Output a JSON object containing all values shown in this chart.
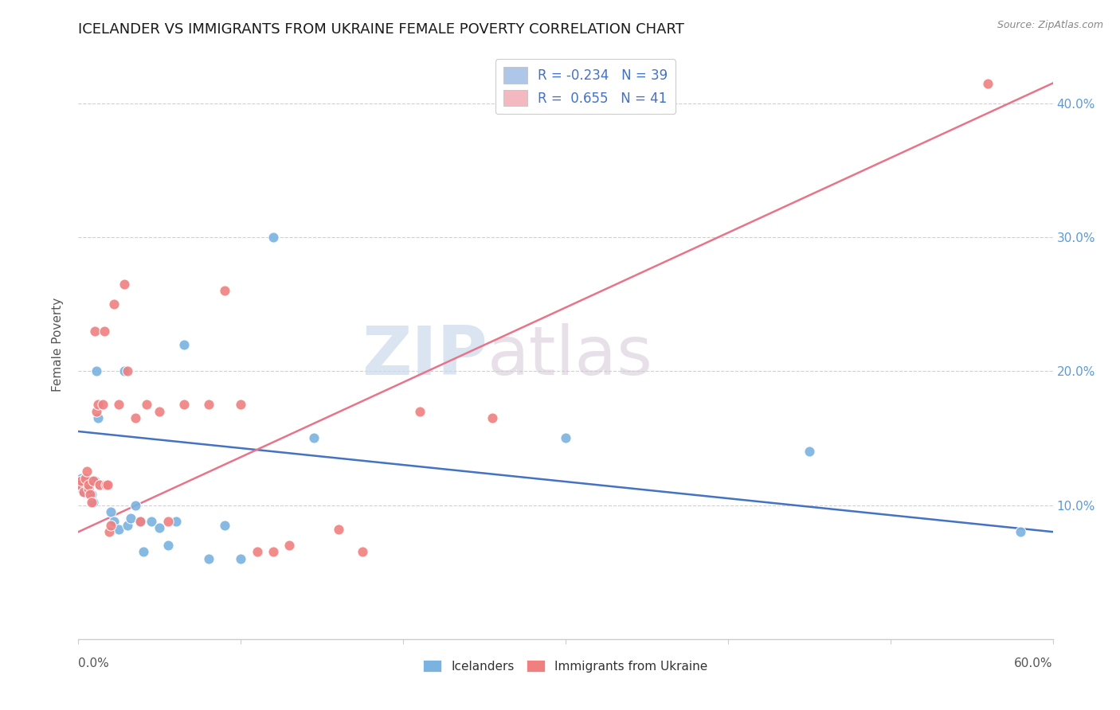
{
  "title": "ICELANDER VS IMMIGRANTS FROM UKRAINE FEMALE POVERTY CORRELATION CHART",
  "source": "Source: ZipAtlas.com",
  "ylabel": "Female Poverty",
  "ytick_labels": [
    "10.0%",
    "20.0%",
    "30.0%",
    "40.0%"
  ],
  "ytick_values": [
    0.1,
    0.2,
    0.3,
    0.4
  ],
  "xlim": [
    0.0,
    0.6
  ],
  "ylim": [
    0.0,
    0.44
  ],
  "legend_entries": [
    {
      "label": "R = -0.234   N = 39",
      "color": "#aec6e8"
    },
    {
      "label": "R =  0.655   N = 41",
      "color": "#f4b8c1"
    }
  ],
  "icelanders_color": "#7ab3e0",
  "ukraine_color": "#f08080",
  "blue_line_color": "#4472c4",
  "pink_line_color": "#e8748a",
  "icelanders_x": [
    0.001,
    0.002,
    0.002,
    0.003,
    0.004,
    0.005,
    0.005,
    0.006,
    0.007,
    0.008,
    0.009,
    0.01,
    0.011,
    0.012,
    0.013,
    0.015,
    0.018,
    0.02,
    0.022,
    0.025,
    0.028,
    0.03,
    0.032,
    0.035,
    0.038,
    0.04,
    0.045,
    0.05,
    0.055,
    0.06,
    0.065,
    0.08,
    0.09,
    0.1,
    0.12,
    0.145,
    0.3,
    0.45,
    0.58
  ],
  "icelanders_y": [
    0.115,
    0.12,
    0.112,
    0.11,
    0.115,
    0.118,
    0.115,
    0.113,
    0.11,
    0.108,
    0.102,
    0.118,
    0.2,
    0.165,
    0.115,
    0.115,
    0.115,
    0.095,
    0.088,
    0.082,
    0.2,
    0.085,
    0.09,
    0.1,
    0.088,
    0.065,
    0.088,
    0.083,
    0.07,
    0.088,
    0.22,
    0.06,
    0.085,
    0.06,
    0.3,
    0.15,
    0.15,
    0.14,
    0.08
  ],
  "ukraine_x": [
    0.001,
    0.002,
    0.003,
    0.004,
    0.005,
    0.006,
    0.006,
    0.007,
    0.008,
    0.009,
    0.01,
    0.011,
    0.012,
    0.013,
    0.015,
    0.016,
    0.017,
    0.018,
    0.019,
    0.02,
    0.022,
    0.025,
    0.028,
    0.03,
    0.035,
    0.038,
    0.042,
    0.05,
    0.055,
    0.065,
    0.08,
    0.09,
    0.1,
    0.11,
    0.12,
    0.13,
    0.16,
    0.175,
    0.21,
    0.255,
    0.56
  ],
  "ukraine_y": [
    0.115,
    0.118,
    0.11,
    0.12,
    0.125,
    0.112,
    0.115,
    0.108,
    0.102,
    0.118,
    0.23,
    0.17,
    0.175,
    0.115,
    0.175,
    0.23,
    0.115,
    0.115,
    0.08,
    0.085,
    0.25,
    0.175,
    0.265,
    0.2,
    0.165,
    0.088,
    0.175,
    0.17,
    0.088,
    0.175,
    0.175,
    0.26,
    0.175,
    0.065,
    0.065,
    0.07,
    0.082,
    0.065,
    0.17,
    0.165,
    0.415
  ],
  "watermark_zip": "ZIP",
  "watermark_atlas": "atlas",
  "background_color": "#ffffff",
  "grid_color": "#d0d0d0"
}
